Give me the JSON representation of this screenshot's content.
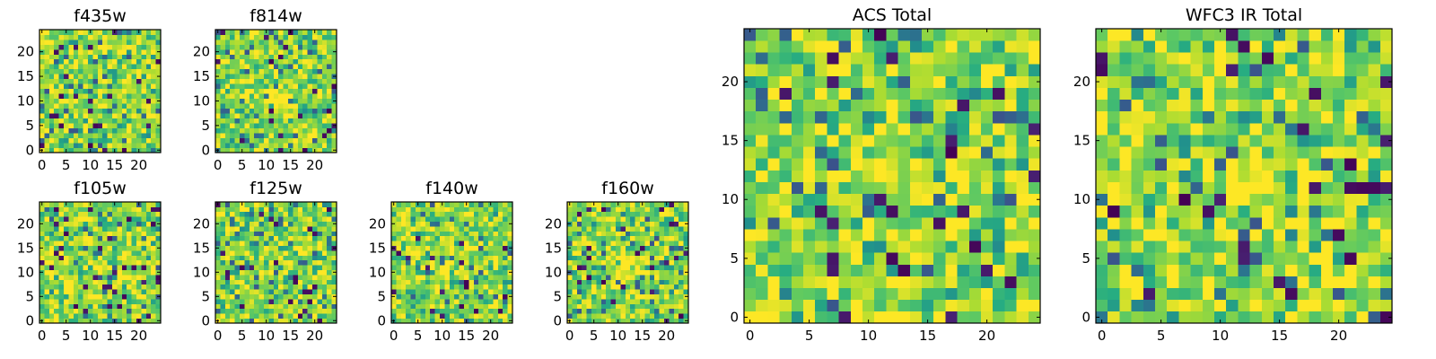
{
  "chart_data": {
    "type": "heatmap",
    "colormap": "viridis",
    "pixel_grid": [
      25,
      25
    ],
    "value_range": [
      0,
      1
    ],
    "grid": false,
    "panels": [
      {
        "title": "f435w",
        "xticks": [
          0,
          5,
          10,
          15,
          20
        ],
        "yticks": [
          0,
          5,
          10,
          15,
          20
        ],
        "xlim": [
          -0.5,
          24.5
        ],
        "ylim": [
          -0.5,
          24.5
        ],
        "texture_seed": 435,
        "central_source": 0.06
      },
      {
        "title": "f814w",
        "xticks": [
          0,
          5,
          10,
          15,
          20
        ],
        "yticks": [
          0,
          5,
          10,
          15,
          20
        ],
        "xlim": [
          -0.5,
          24.5
        ],
        "ylim": [
          -0.5,
          24.5
        ],
        "texture_seed": 814,
        "central_source": 0.14
      },
      {
        "title": "f105w",
        "xticks": [
          0,
          5,
          10,
          15,
          20
        ],
        "yticks": [
          0,
          5,
          10,
          15,
          20
        ],
        "xlim": [
          -0.5,
          24.5
        ],
        "ylim": [
          -0.5,
          24.5
        ],
        "texture_seed": 105,
        "central_source": 0.1
      },
      {
        "title": "f125w",
        "xticks": [
          0,
          5,
          10,
          15,
          20
        ],
        "yticks": [
          0,
          5,
          10,
          15,
          20
        ],
        "xlim": [
          -0.5,
          24.5
        ],
        "ylim": [
          -0.5,
          24.5
        ],
        "texture_seed": 125,
        "central_source": 0.12
      },
      {
        "title": "f140w",
        "xticks": [
          0,
          5,
          10,
          15,
          20
        ],
        "yticks": [
          0,
          5,
          10,
          15,
          20
        ],
        "xlim": [
          -0.5,
          24.5
        ],
        "ylim": [
          -0.5,
          24.5
        ],
        "texture_seed": 140,
        "central_source": 0.12
      },
      {
        "title": "f160w",
        "xticks": [
          0,
          5,
          10,
          15,
          20
        ],
        "yticks": [
          0,
          5,
          10,
          15,
          20
        ],
        "xlim": [
          -0.5,
          24.5
        ],
        "ylim": [
          -0.5,
          24.5
        ],
        "texture_seed": 160,
        "central_source": 0.12
      },
      {
        "title": "ACS Total",
        "xticks": [
          0,
          5,
          10,
          15,
          20
        ],
        "yticks": [
          0,
          5,
          10,
          15,
          20
        ],
        "xlim": [
          -0.5,
          24.5
        ],
        "ylim": [
          -0.5,
          24.5
        ],
        "texture_seed": 2222,
        "central_source": 0.14
      },
      {
        "title": "WFC3 IR Total",
        "xticks": [
          0,
          5,
          10,
          15,
          20
        ],
        "yticks": [
          0,
          5,
          10,
          15,
          20
        ],
        "xlim": [
          -0.5,
          24.5
        ],
        "ylim": [
          -0.5,
          24.5
        ],
        "texture_seed": 3333,
        "central_source": 0.2
      }
    ]
  }
}
